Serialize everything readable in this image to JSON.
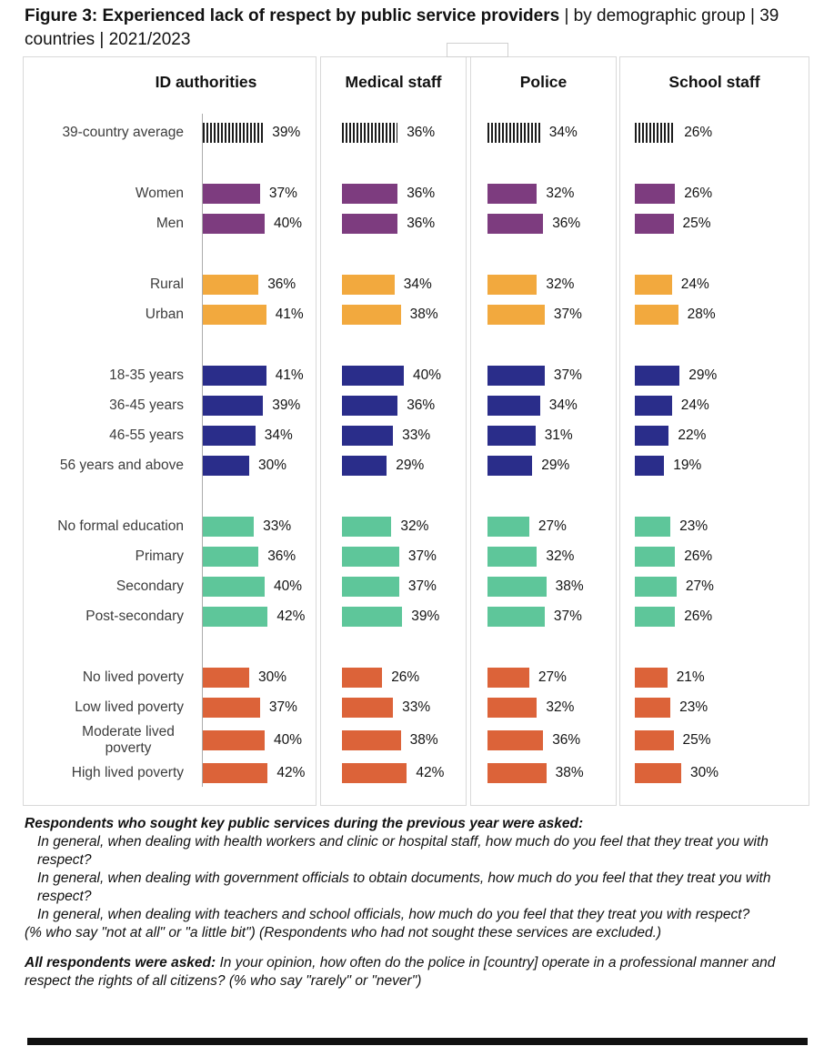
{
  "title": {
    "bold": "Figure 3: Experienced lack of respect by public service providers",
    "rest": " | by demographic group | 39 countries | 2021/2023"
  },
  "chart_data": {
    "type": "bar",
    "orientation": "horizontal",
    "unit": "%",
    "value_suffix": "%",
    "xlim": [
      0,
      45
    ],
    "grid": false,
    "categories": [
      "39-country average",
      "Women",
      "Men",
      "Rural",
      "Urban",
      "18-35 years",
      "36-45 years",
      "46-55 years",
      "56 years and above",
      "No formal education",
      "Primary",
      "Secondary",
      "Post-secondary",
      "No lived poverty",
      "Low lived poverty",
      "Moderate lived poverty",
      "High lived poverty"
    ],
    "category_groups": [
      "average",
      "gender",
      "gender",
      "location",
      "location",
      "age",
      "age",
      "age",
      "age",
      "education",
      "education",
      "education",
      "education",
      "poverty",
      "poverty",
      "poverty",
      "poverty"
    ],
    "group_colors": {
      "average": "hatched-black-stripes",
      "gender": "#7d3c7f",
      "location": "#f2a93e",
      "age": "#2a2d8a",
      "education": "#5ec69a",
      "poverty": "#dc6339"
    },
    "series": [
      {
        "name": "ID authorities",
        "values": [
          39,
          37,
          40,
          36,
          41,
          41,
          39,
          34,
          30,
          33,
          36,
          40,
          42,
          30,
          37,
          40,
          42
        ]
      },
      {
        "name": "Medical staff",
        "values": [
          36,
          36,
          36,
          34,
          38,
          40,
          36,
          33,
          29,
          32,
          37,
          37,
          39,
          26,
          33,
          38,
          42
        ]
      },
      {
        "name": "Police",
        "values": [
          34,
          32,
          36,
          32,
          37,
          37,
          34,
          31,
          29,
          27,
          32,
          38,
          37,
          27,
          32,
          36,
          38
        ]
      },
      {
        "name": "School staff",
        "values": [
          26,
          26,
          25,
          24,
          28,
          29,
          24,
          22,
          19,
          23,
          26,
          27,
          26,
          21,
          23,
          25,
          30
        ]
      }
    ]
  },
  "notes": {
    "intro": "Respondents who sought key public services during the previous year were asked:",
    "questions": [
      "In general, when dealing with health workers and clinic or hospital staff, how much do you feel that they treat you with respect?",
      "In general, when dealing with government officials to obtain documents, how much do you feel that they treat you with respect?",
      "In general, when dealing with teachers and school officials, how much do you feel that they treat you with respect?"
    ],
    "exclusion": "(% who say \"not at all\" or \"a little bit\") (Respondents who had not sought these services are excluded.)",
    "police_bold": "All respondents were asked:",
    "police_rest": " In your opinion, how often do the police in [country] operate in a professional manner and respect the rights of all citizens? (% who say \"rarely\" or \"never\")"
  }
}
